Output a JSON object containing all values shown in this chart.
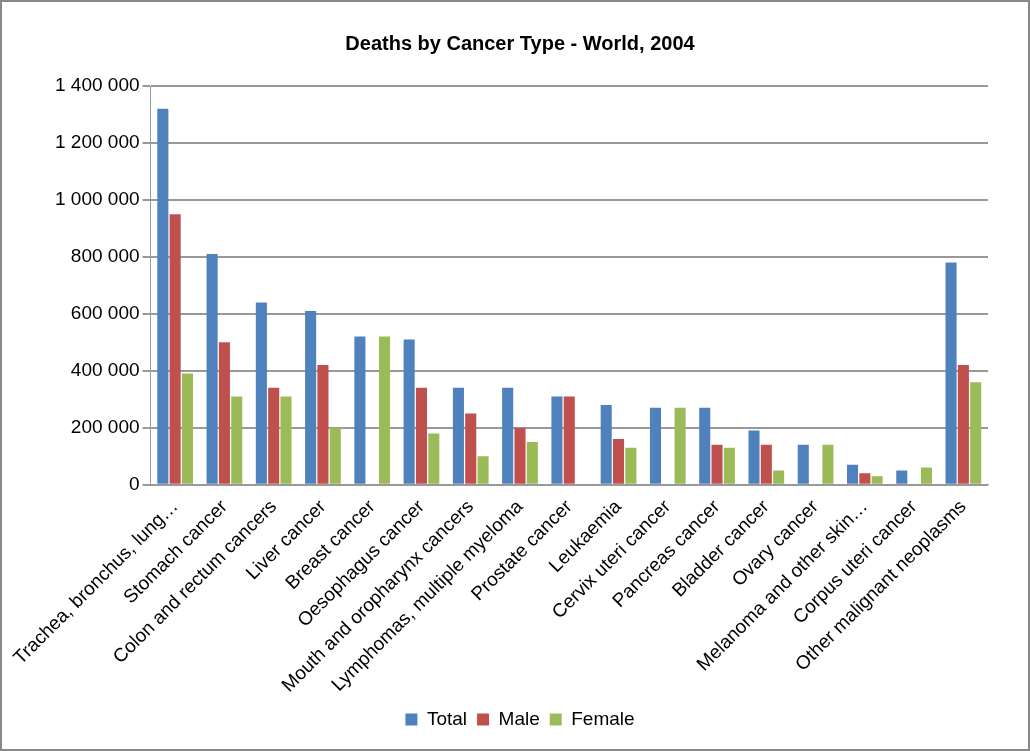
{
  "chart_data": {
    "type": "bar",
    "title": "Deaths by Cancer Type - World, 2004",
    "categories": [
      "Trachea, bronchus, lung…",
      "Stomach cancer",
      "Colon and rectum cancers",
      "Liver cancer",
      "Breast cancer",
      "Oesophagus cancer",
      "Mouth and oropharynx cancers",
      "Lymphomas, multiple myeloma",
      "Prostate cancer",
      "Leukaemia",
      "Cervix uteri cancer",
      "Pancreas cancer",
      "Bladder cancer",
      "Ovary cancer",
      "Melanoma and other skin…",
      "Corpus uteri cancer",
      "Other malignant neoplasms"
    ],
    "series": [
      {
        "name": "Total",
        "color": "#4f81bd",
        "values": [
          1320000,
          810000,
          640000,
          610000,
          520000,
          510000,
          340000,
          340000,
          310000,
          280000,
          270000,
          270000,
          190000,
          140000,
          70000,
          50000,
          780000
        ]
      },
      {
        "name": "Male",
        "color": "#c0504d",
        "values": [
          950000,
          500000,
          340000,
          420000,
          0,
          340000,
          250000,
          200000,
          310000,
          160000,
          0,
          140000,
          140000,
          0,
          40000,
          0,
          420000
        ]
      },
      {
        "name": "Female",
        "color": "#9bbb59",
        "values": [
          390000,
          310000,
          310000,
          200000,
          520000,
          180000,
          100000,
          150000,
          0,
          130000,
          270000,
          130000,
          50000,
          140000,
          30000,
          60000,
          360000
        ]
      }
    ],
    "ylim": [
      0,
      1400000
    ],
    "yticks": [
      {
        "value": 0,
        "label": "0"
      },
      {
        "value": 200000,
        "label": "200 000"
      },
      {
        "value": 400000,
        "label": "400 000"
      },
      {
        "value": 600000,
        "label": "600 000"
      },
      {
        "value": 800000,
        "label": "800 000"
      },
      {
        "value": 1000000,
        "label": "1 000 000"
      },
      {
        "value": 1200000,
        "label": "1 200 000"
      },
      {
        "value": 1400000,
        "label": "1 400 000"
      }
    ],
    "grid": "y",
    "legend": "bottom"
  }
}
